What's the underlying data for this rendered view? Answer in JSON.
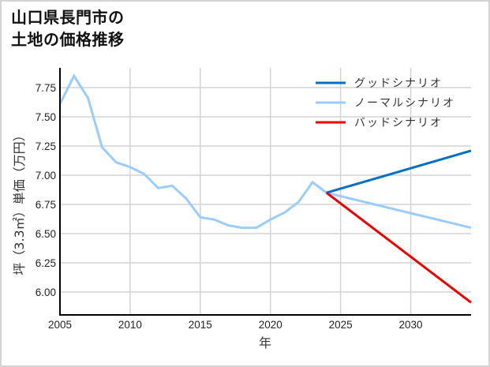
{
  "title_lines": [
    "山口県長門市の",
    "土地の価格推移"
  ],
  "chart_data": {
    "type": "line",
    "title": "山口県長門市の土地の価格推移",
    "xlabel": "年",
    "ylabel": "坪（3.3㎡）単価（万円）",
    "xlim": [
      2005,
      2034.3
    ],
    "ylim": [
      5.81,
      7.96
    ],
    "xticks": [
      2005,
      2010,
      2015,
      2020,
      2025,
      2030
    ],
    "yticks": [
      6.0,
      6.25,
      6.5,
      6.75,
      7.0,
      7.25,
      7.5,
      7.75
    ],
    "xtick_labels": [
      "2005",
      "2010",
      "2015",
      "2020",
      "2025",
      "2030"
    ],
    "ytick_labels": [
      "6.00",
      "6.25",
      "6.50",
      "6.75",
      "7.00",
      "7.25",
      "7.50",
      "7.75"
    ],
    "grid": true,
    "legend_position": "upper right",
    "series": [
      {
        "name": "グッドシナリオ",
        "color": "#0070c8",
        "x": [
          2024,
          2034.3
        ],
        "values": [
          6.85,
          7.21
        ]
      },
      {
        "name": "ノーマルシナリオ",
        "color": "#99ccff",
        "x": [
          2005,
          2006,
          2007,
          2008,
          2009,
          2010,
          2011,
          2012,
          2013,
          2014,
          2015,
          2016,
          2017,
          2018,
          2019,
          2020,
          2021,
          2022,
          2023,
          2024,
          2034.3
        ],
        "values": [
          7.61,
          7.85,
          7.66,
          7.24,
          7.11,
          7.07,
          7.01,
          6.89,
          6.91,
          6.8,
          6.64,
          6.62,
          6.57,
          6.55,
          6.55,
          6.62,
          6.68,
          6.77,
          6.94,
          6.85,
          6.55
        ]
      },
      {
        "name": "バッドシナリオ",
        "color": "#ee0000",
        "x": [
          2024,
          2034.3
        ],
        "values": [
          6.85,
          5.91
        ]
      }
    ]
  },
  "legend": [
    {
      "label": "グッドシナリオ",
      "color": "#0070c8"
    },
    {
      "label": "ノーマルシナリオ",
      "color": "#99ccff"
    },
    {
      "label": "バッドシナリオ",
      "color": "#ee0000"
    }
  ],
  "axes": {
    "xlabel": "年",
    "ylabel": "坪（3.3㎡）単価（万円）"
  }
}
